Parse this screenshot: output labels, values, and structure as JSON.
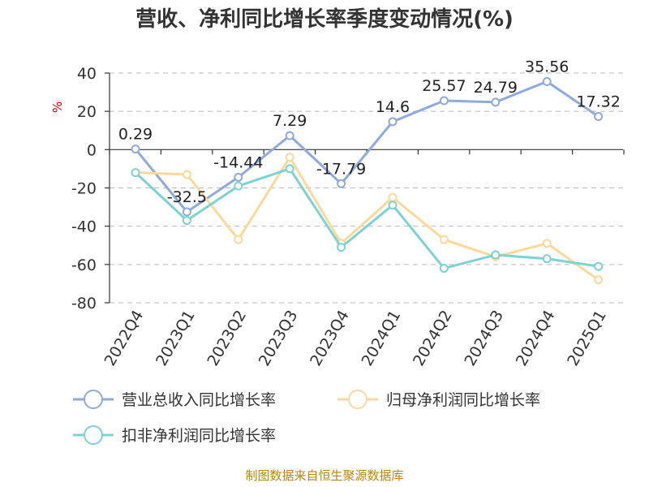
{
  "chart_data": {
    "type": "line",
    "title": "营收、净利同比增长率季度变动情况(%)",
    "ylabel": "%",
    "xlabel": "",
    "categories": [
      "2022Q4",
      "2023Q1",
      "2023Q2",
      "2023Q3",
      "2023Q4",
      "2024Q1",
      "2024Q2",
      "2024Q3",
      "2024Q4",
      "2025Q1"
    ],
    "ylim": [
      -80,
      40
    ],
    "yticks": [
      40,
      20,
      0,
      -20,
      -40,
      -60,
      -80
    ],
    "grid": true,
    "legend_position": "bottom",
    "series": [
      {
        "name": "营业总收入同比增长率",
        "color": "#8faadc",
        "values": [
          0.29,
          -32.5,
          -14.44,
          7.29,
          -17.79,
          14.6,
          25.57,
          24.79,
          35.56,
          17.32
        ],
        "labels": [
          "0.29",
          "-32.5",
          "-14.44",
          "7.29",
          "-17.79",
          "14.6",
          "25.57",
          "24.79",
          "35.56",
          "17.32"
        ]
      },
      {
        "name": "归母净利润同比增长率",
        "color": "#fbd99a",
        "values": [
          -12,
          -13,
          -47,
          -4,
          -49,
          -25,
          -47,
          -56,
          -49,
          -68
        ]
      },
      {
        "name": "扣非净利润同比增长率",
        "color": "#7dd3d3",
        "values": [
          -12,
          -37,
          -19,
          -10,
          -51,
          -29,
          -62,
          -55,
          -57,
          -61
        ]
      }
    ],
    "source": "制图数据来自恒生聚源数据库"
  }
}
